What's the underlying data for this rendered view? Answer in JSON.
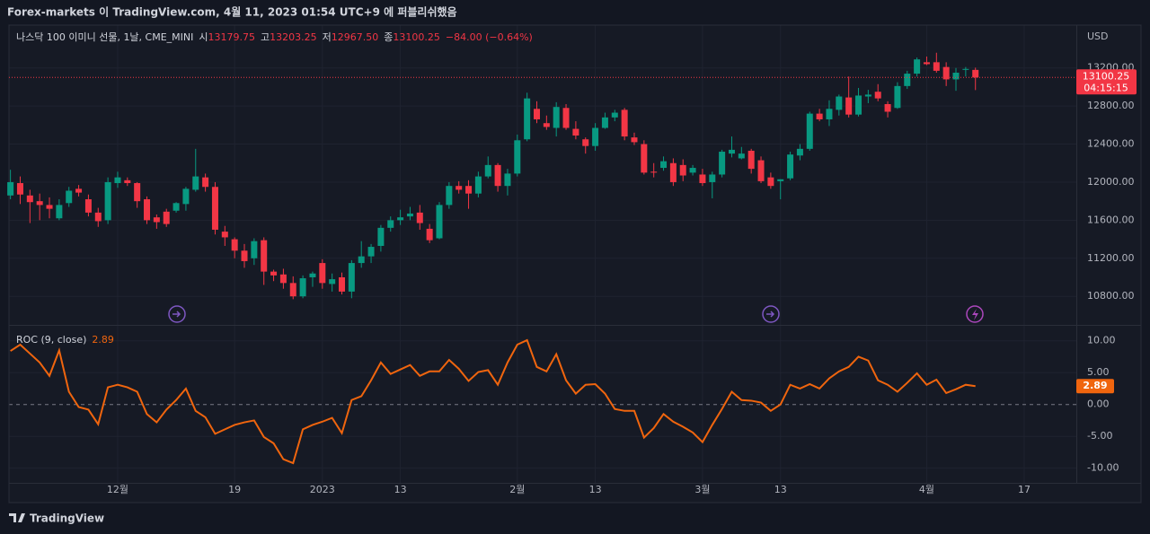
{
  "header": {
    "title": "Forex-markets 이 TradingView.com, 4월 11, 2023 01:54 UTC+9 에 퍼블리쉬했음"
  },
  "footer": {
    "brand": "TradingView"
  },
  "chart_data": [
    {
      "type": "candlestick",
      "legend": {
        "symbol": "나스닥 100 이미니 선물, 1날, CME_MINI",
        "ohlc": [
          {
            "label": "시",
            "value": "13179.75"
          },
          {
            "label": "고",
            "value": "13203.25"
          },
          {
            "label": "저",
            "value": "12967.50"
          },
          {
            "label": "종",
            "value": "13100.25"
          }
        ],
        "change": "−84.00 (−0.64%)"
      },
      "currency": "USD",
      "countdown": "04:15:15",
      "up_color": "#089981",
      "down_color": "#f23645",
      "open": [
        11860,
        11990,
        11860,
        11800,
        11760,
        11620,
        11780,
        11930,
        11820,
        11680,
        11600,
        11990,
        12020,
        11990,
        11820,
        11630,
        11690,
        11700,
        11770,
        11920,
        12050,
        11950,
        11480,
        11400,
        11280,
        11200,
        11390,
        11060,
        11030,
        10940,
        10800,
        11000,
        11150,
        10930,
        11000,
        10850,
        11150,
        11220,
        11330,
        11520,
        11600,
        11640,
        11680,
        11510,
        11410,
        11760,
        11960,
        11960,
        11880,
        12060,
        12180,
        11960,
        12090,
        12450,
        12770,
        12620,
        12570,
        12780,
        12560,
        12450,
        12380,
        12570,
        12680,
        12760,
        12470,
        12400,
        12110,
        12150,
        12200,
        12180,
        12100,
        12080,
        12000,
        12080,
        12300,
        12250,
        12330,
        12230,
        12050,
        12010,
        12040,
        12280,
        12350,
        12720,
        12660,
        12760,
        12890,
        12710,
        12900,
        12950,
        12820,
        12780,
        13010,
        13140,
        13260,
        13260,
        13210,
        13080,
        13180,
        13179.75
      ],
      "high": [
        12130,
        12060,
        11920,
        11880,
        11840,
        11820,
        11950,
        11970,
        11870,
        11730,
        12050,
        12110,
        12050,
        12000,
        11850,
        11660,
        11720,
        11790,
        11950,
        12350,
        12090,
        12000,
        11540,
        11420,
        11350,
        11410,
        11420,
        11080,
        11090,
        11010,
        11020,
        11060,
        11190,
        11040,
        11050,
        11180,
        11380,
        11350,
        11550,
        11640,
        11710,
        11740,
        11760,
        11560,
        11790,
        12000,
        12010,
        12020,
        12110,
        12270,
        12200,
        12140,
        12500,
        12940,
        12850,
        12700,
        12840,
        12820,
        12640,
        12470,
        12620,
        12730,
        12760,
        12780,
        12520,
        12440,
        12200,
        12270,
        12250,
        12240,
        12180,
        12140,
        12110,
        12340,
        12480,
        12370,
        12350,
        12270,
        12100,
        12030,
        12320,
        12400,
        12740,
        12770,
        12860,
        12920,
        13110,
        12990,
        12970,
        13030,
        12850,
        13050,
        13170,
        13310,
        13320,
        13360,
        13260,
        13200,
        13210,
        13203.25
      ],
      "low": [
        11820,
        11770,
        11570,
        11600,
        11620,
        11600,
        11740,
        11850,
        11640,
        11530,
        11560,
        11940,
        11960,
        11730,
        11560,
        11510,
        11530,
        11680,
        11700,
        11900,
        11900,
        11450,
        11330,
        11200,
        11100,
        11130,
        10920,
        10960,
        10880,
        10770,
        10780,
        10900,
        10880,
        10850,
        10820,
        10780,
        11100,
        11150,
        11270,
        11480,
        11550,
        11600,
        11500,
        11360,
        11400,
        11720,
        11880,
        11720,
        11840,
        12040,
        11900,
        11860,
        12060,
        12430,
        12620,
        12550,
        12480,
        12550,
        12450,
        12300,
        12330,
        12560,
        12640,
        12440,
        12390,
        12080,
        12050,
        12120,
        11960,
        12010,
        12070,
        11960,
        11830,
        12050,
        12260,
        12240,
        12090,
        11990,
        11930,
        11820,
        12020,
        12230,
        12330,
        12640,
        12590,
        12700,
        12680,
        12690,
        12830,
        12850,
        12680,
        12770,
        12980,
        13110,
        13230,
        13150,
        13010,
        12960,
        13110,
        12967.5
      ],
      "close": [
        12000,
        11870,
        11790,
        11760,
        11720,
        11760,
        11910,
        11890,
        11680,
        11590,
        12000,
        12050,
        11990,
        11800,
        11600,
        11580,
        11560,
        11780,
        11930,
        12060,
        11950,
        11500,
        11420,
        11280,
        11170,
        11380,
        11060,
        11020,
        10940,
        10800,
        10990,
        11040,
        10940,
        10980,
        10850,
        11150,
        11220,
        11320,
        11520,
        11600,
        11630,
        11670,
        11570,
        11390,
        11760,
        11960,
        11920,
        11880,
        12060,
        12180,
        11960,
        12090,
        12440,
        12880,
        12660,
        12580,
        12790,
        12570,
        12490,
        12380,
        12570,
        12680,
        12730,
        12480,
        12420,
        12100,
        12100,
        12220,
        12000,
        12070,
        12150,
        11990,
        12080,
        12320,
        12340,
        12300,
        12140,
        12010,
        11960,
        12030,
        12290,
        12350,
        12720,
        12660,
        12770,
        12900,
        12710,
        12910,
        12920,
        12880,
        12740,
        13010,
        13140,
        13290,
        13240,
        13170,
        13080,
        13150,
        13190,
        13100.25
      ],
      "ylim": [
        10500,
        13650
      ],
      "yticks": [
        {
          "value": 10800,
          "label": "10800.00"
        },
        {
          "value": 11200,
          "label": "11200.00"
        },
        {
          "value": 11600,
          "label": "11600.00"
        },
        {
          "value": 12000,
          "label": "12000.00"
        },
        {
          "value": 12400,
          "label": "12400.00"
        },
        {
          "value": 12800,
          "label": "12800.00"
        },
        {
          "value": 13200,
          "label": "13200.00"
        }
      ],
      "grid": true
    },
    {
      "type": "line",
      "series": [
        {
          "name": "ROC (9, close)",
          "color": "#f0650e",
          "values": [
            8.4,
            9.4,
            8.0,
            6.6,
            4.5,
            8.5,
            2.0,
            -0.4,
            -0.8,
            -3.1,
            2.7,
            3.1,
            2.7,
            2.0,
            -1.5,
            -2.8,
            -0.8,
            0.7,
            2.5,
            -1.0,
            -2.0,
            -4.6,
            -3.9,
            -3.2,
            -2.8,
            -2.5,
            -5.1,
            -6.1,
            -8.6,
            -9.2,
            -3.9,
            -3.2,
            -2.7,
            -2.1,
            -4.5,
            0.7,
            1.3,
            3.8,
            6.6,
            4.8,
            5.5,
            6.2,
            4.5,
            5.2,
            5.2,
            7.0,
            5.6,
            3.7,
            5.1,
            5.4,
            3.1,
            6.6,
            9.4,
            10.1,
            5.9,
            5.2,
            7.9,
            3.8,
            1.7,
            3.1,
            3.2,
            1.7,
            -0.7,
            -1.0,
            -1.0,
            -5.2,
            -3.7,
            -1.5,
            -2.7,
            -3.5,
            -4.4,
            -5.9,
            -3.2,
            -0.7,
            2.0,
            0.7,
            0.6,
            0.3,
            -1.0,
            0.0,
            3.1,
            2.5,
            3.2,
            2.5,
            4.1,
            5.2,
            5.9,
            7.5,
            6.9,
            3.8,
            3.1,
            2.0,
            3.4,
            4.9,
            3.1,
            3.9,
            1.8,
            2.4,
            3.1,
            2.89
          ]
        }
      ],
      "ylim": [
        -12.3,
        12.5
      ],
      "yticks": [
        {
          "value": 10,
          "label": "10.00"
        },
        {
          "value": 5,
          "label": "5.00"
        },
        {
          "value": 0,
          "label": "0.00"
        },
        {
          "value": -5,
          "label": "-5.00"
        },
        {
          "value": -10,
          "label": "-10.00"
        }
      ],
      "xlim": [
        -0.15,
        109.35
      ],
      "xticks": [
        {
          "value": 11,
          "label": "12월"
        },
        {
          "value": 23,
          "label": "19"
        },
        {
          "value": 32,
          "label": "2023"
        },
        {
          "value": 40,
          "label": "13"
        },
        {
          "value": 52,
          "label": "2월"
        },
        {
          "value": 60,
          "label": "13"
        },
        {
          "value": 71,
          "label": "3월"
        },
        {
          "value": 79,
          "label": "13"
        },
        {
          "value": 94,
          "label": "4월"
        },
        {
          "value": 104,
          "label": "17"
        }
      ],
      "grid": true
    }
  ]
}
